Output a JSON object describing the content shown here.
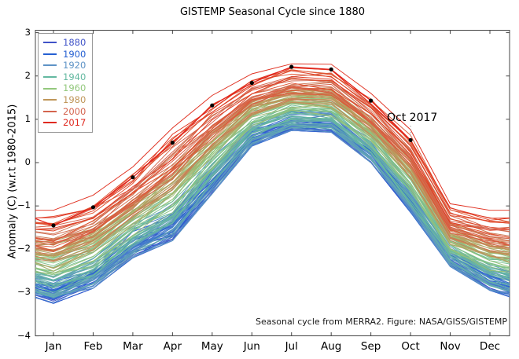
{
  "figure": {
    "title": "GISTEMP Seasonal Cycle since 1880",
    "ylabel": "Anomaly (C) (w.r.t 1980-2015)",
    "credit": "Seasonal cycle from MERRA2. Figure: NASA/GISS/GISTEMP",
    "annotation_label": "Oct 2017"
  },
  "chart_data": {
    "type": "line",
    "title": "GISTEMP Seasonal Cycle since 1880",
    "xlabel": "",
    "ylabel": "Anomaly (C) (w.r.t 1980-2015)",
    "x_categories": [
      "Jan",
      "Feb",
      "Mar",
      "Apr",
      "May",
      "Jun",
      "Jul",
      "Aug",
      "Sep",
      "Oct",
      "Nov",
      "Dec"
    ],
    "yticks": [
      3,
      2,
      1,
      0,
      -1,
      -2,
      -3,
      -4
    ],
    "ylim": [
      -4.0,
      3.05
    ],
    "grid": false,
    "legend_position": "upper left",
    "legend_entries": [
      {
        "label": "1880",
        "color": "#4053c8"
      },
      {
        "label": "1900",
        "color": "#2560d2"
      },
      {
        "label": "1920",
        "color": "#5e93c6"
      },
      {
        "label": "1940",
        "color": "#64b9a1"
      },
      {
        "label": "1960",
        "color": "#93c87d"
      },
      {
        "label": "1980",
        "color": "#bf9659"
      },
      {
        "label": "2000",
        "color": "#d4644e"
      },
      {
        "label": "2017",
        "color": "#e02a20"
      }
    ],
    "series": [
      {
        "name": "1880-2016 yearly seasonal cycles",
        "count": 137,
        "note": "137 overlapping yearly curves, colored blue (1880) through green/tan to red (2016); values estimated as a band between envelopes",
        "envelope_min": [
          -3.25,
          -2.9,
          -2.2,
          -1.8,
          -0.72,
          0.38,
          0.74,
          0.7,
          0.0,
          -1.15,
          -2.4,
          -2.95
        ],
        "envelope_max": [
          -1.1,
          -0.75,
          -0.1,
          0.8,
          1.55,
          2.05,
          2.28,
          2.27,
          1.6,
          0.76,
          -0.95,
          -1.1
        ],
        "colormap_stops": [
          {
            "t": 0.0,
            "color": "#4053c8"
          },
          {
            "t": 0.147,
            "color": "#2560d2"
          },
          {
            "t": 0.294,
            "color": "#5e93c6"
          },
          {
            "t": 0.441,
            "color": "#64b9a1"
          },
          {
            "t": 0.588,
            "color": "#93c87d"
          },
          {
            "t": 0.735,
            "color": "#bf9659"
          },
          {
            "t": 0.882,
            "color": "#d4644e"
          },
          {
            "t": 0.95,
            "color": "#e0512d"
          },
          {
            "t": 1.0,
            "color": "#e03020"
          }
        ]
      },
      {
        "name": "2017",
        "color": "#e3231c",
        "marker": "black-dot",
        "marker_color": "#000000",
        "months": [
          "Jan",
          "Feb",
          "Mar",
          "Apr",
          "May",
          "Jun",
          "Jul",
          "Aug",
          "Sep",
          "Oct"
        ],
        "values": [
          -1.45,
          -1.03,
          -0.34,
          0.46,
          1.32,
          1.84,
          2.21,
          2.15,
          1.43,
          0.52
        ],
        "annotation": {
          "text": "Oct 2017",
          "month": "Oct",
          "value": 0.52
        }
      }
    ],
    "credit": "Seasonal cycle from MERRA2. Figure: NASA/GISS/GISTEMP"
  }
}
